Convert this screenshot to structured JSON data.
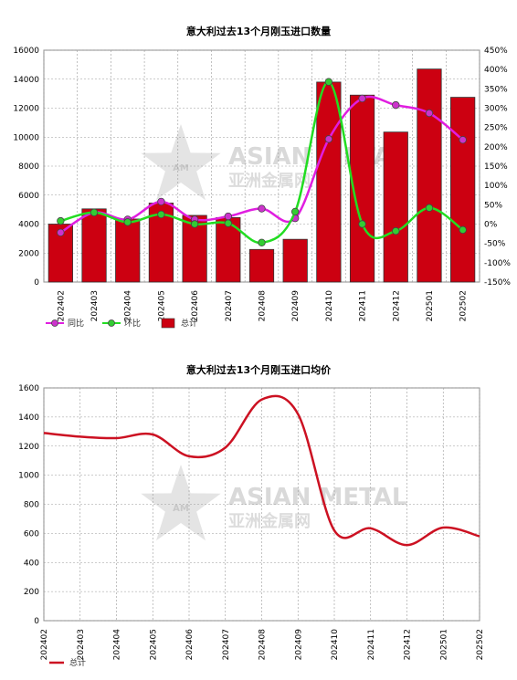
{
  "watermark": {
    "line1": "ASIAN METAL",
    "line2": "亚洲金属网",
    "logo": "AM"
  },
  "chart_data": [
    {
      "type": "bar",
      "title": "意大利过去13个月刚玉进口数量",
      "categories": [
        "202402",
        "202403",
        "202404",
        "202405",
        "202406",
        "202407",
        "202408",
        "202409",
        "202410",
        "202411",
        "202412",
        "202501",
        "202502"
      ],
      "ylim_left": [
        0,
        16000
      ],
      "yticks_left": [
        0,
        2000,
        4000,
        6000,
        8000,
        10000,
        12000,
        14000,
        16000
      ],
      "ylim_right": [
        -150,
        450
      ],
      "yticks_right": [
        "-150%",
        "-100%",
        "-50%",
        "0%",
        "50%",
        "100%",
        "150%",
        "200%",
        "250%",
        "300%",
        "350%",
        "400%",
        "450%"
      ],
      "yticks_right_values": [
        -150,
        -100,
        -50,
        0,
        50,
        100,
        150,
        200,
        250,
        300,
        350,
        400,
        450
      ],
      "grid": true,
      "legend_position": "bottom-left",
      "series": [
        {
          "name": "同比",
          "type": "line",
          "axis": "right",
          "color": "#e01ee0",
          "marker": "#cc33cc",
          "values": [
            -22,
            30,
            12,
            58,
            12,
            20,
            40,
            15,
            220,
            325,
            308,
            287,
            218
          ]
        },
        {
          "name": "环比",
          "type": "line",
          "axis": "right",
          "color": "#22dd22",
          "marker": "#33cc33",
          "values": [
            8,
            30,
            5,
            25,
            0,
            2,
            -48,
            32,
            368,
            0,
            -18,
            42,
            -15
          ]
        },
        {
          "name": "总计",
          "type": "bar",
          "axis": "left",
          "color": "#cc0011",
          "values": [
            4000,
            5050,
            4350,
            5450,
            4600,
            4450,
            2250,
            2950,
            13800,
            12900,
            10350,
            14700,
            12750
          ]
        }
      ]
    },
    {
      "type": "line",
      "title": "意大利过去13个月刚玉进口均价",
      "categories": [
        "202402",
        "202403",
        "202404",
        "202405",
        "202406",
        "202407",
        "202408",
        "202409",
        "202410",
        "202411",
        "202412",
        "202501",
        "202502"
      ],
      "ylim": [
        0,
        1600
      ],
      "yticks": [
        0,
        200,
        400,
        600,
        800,
        1000,
        1200,
        1400,
        1600
      ],
      "grid": true,
      "legend_position": "bottom-left",
      "series": [
        {
          "name": "总计",
          "color": "#cc1122",
          "values": [
            1290,
            1265,
            1255,
            1280,
            1130,
            1190,
            1520,
            1420,
            620,
            635,
            520,
            640,
            580
          ]
        }
      ]
    }
  ]
}
